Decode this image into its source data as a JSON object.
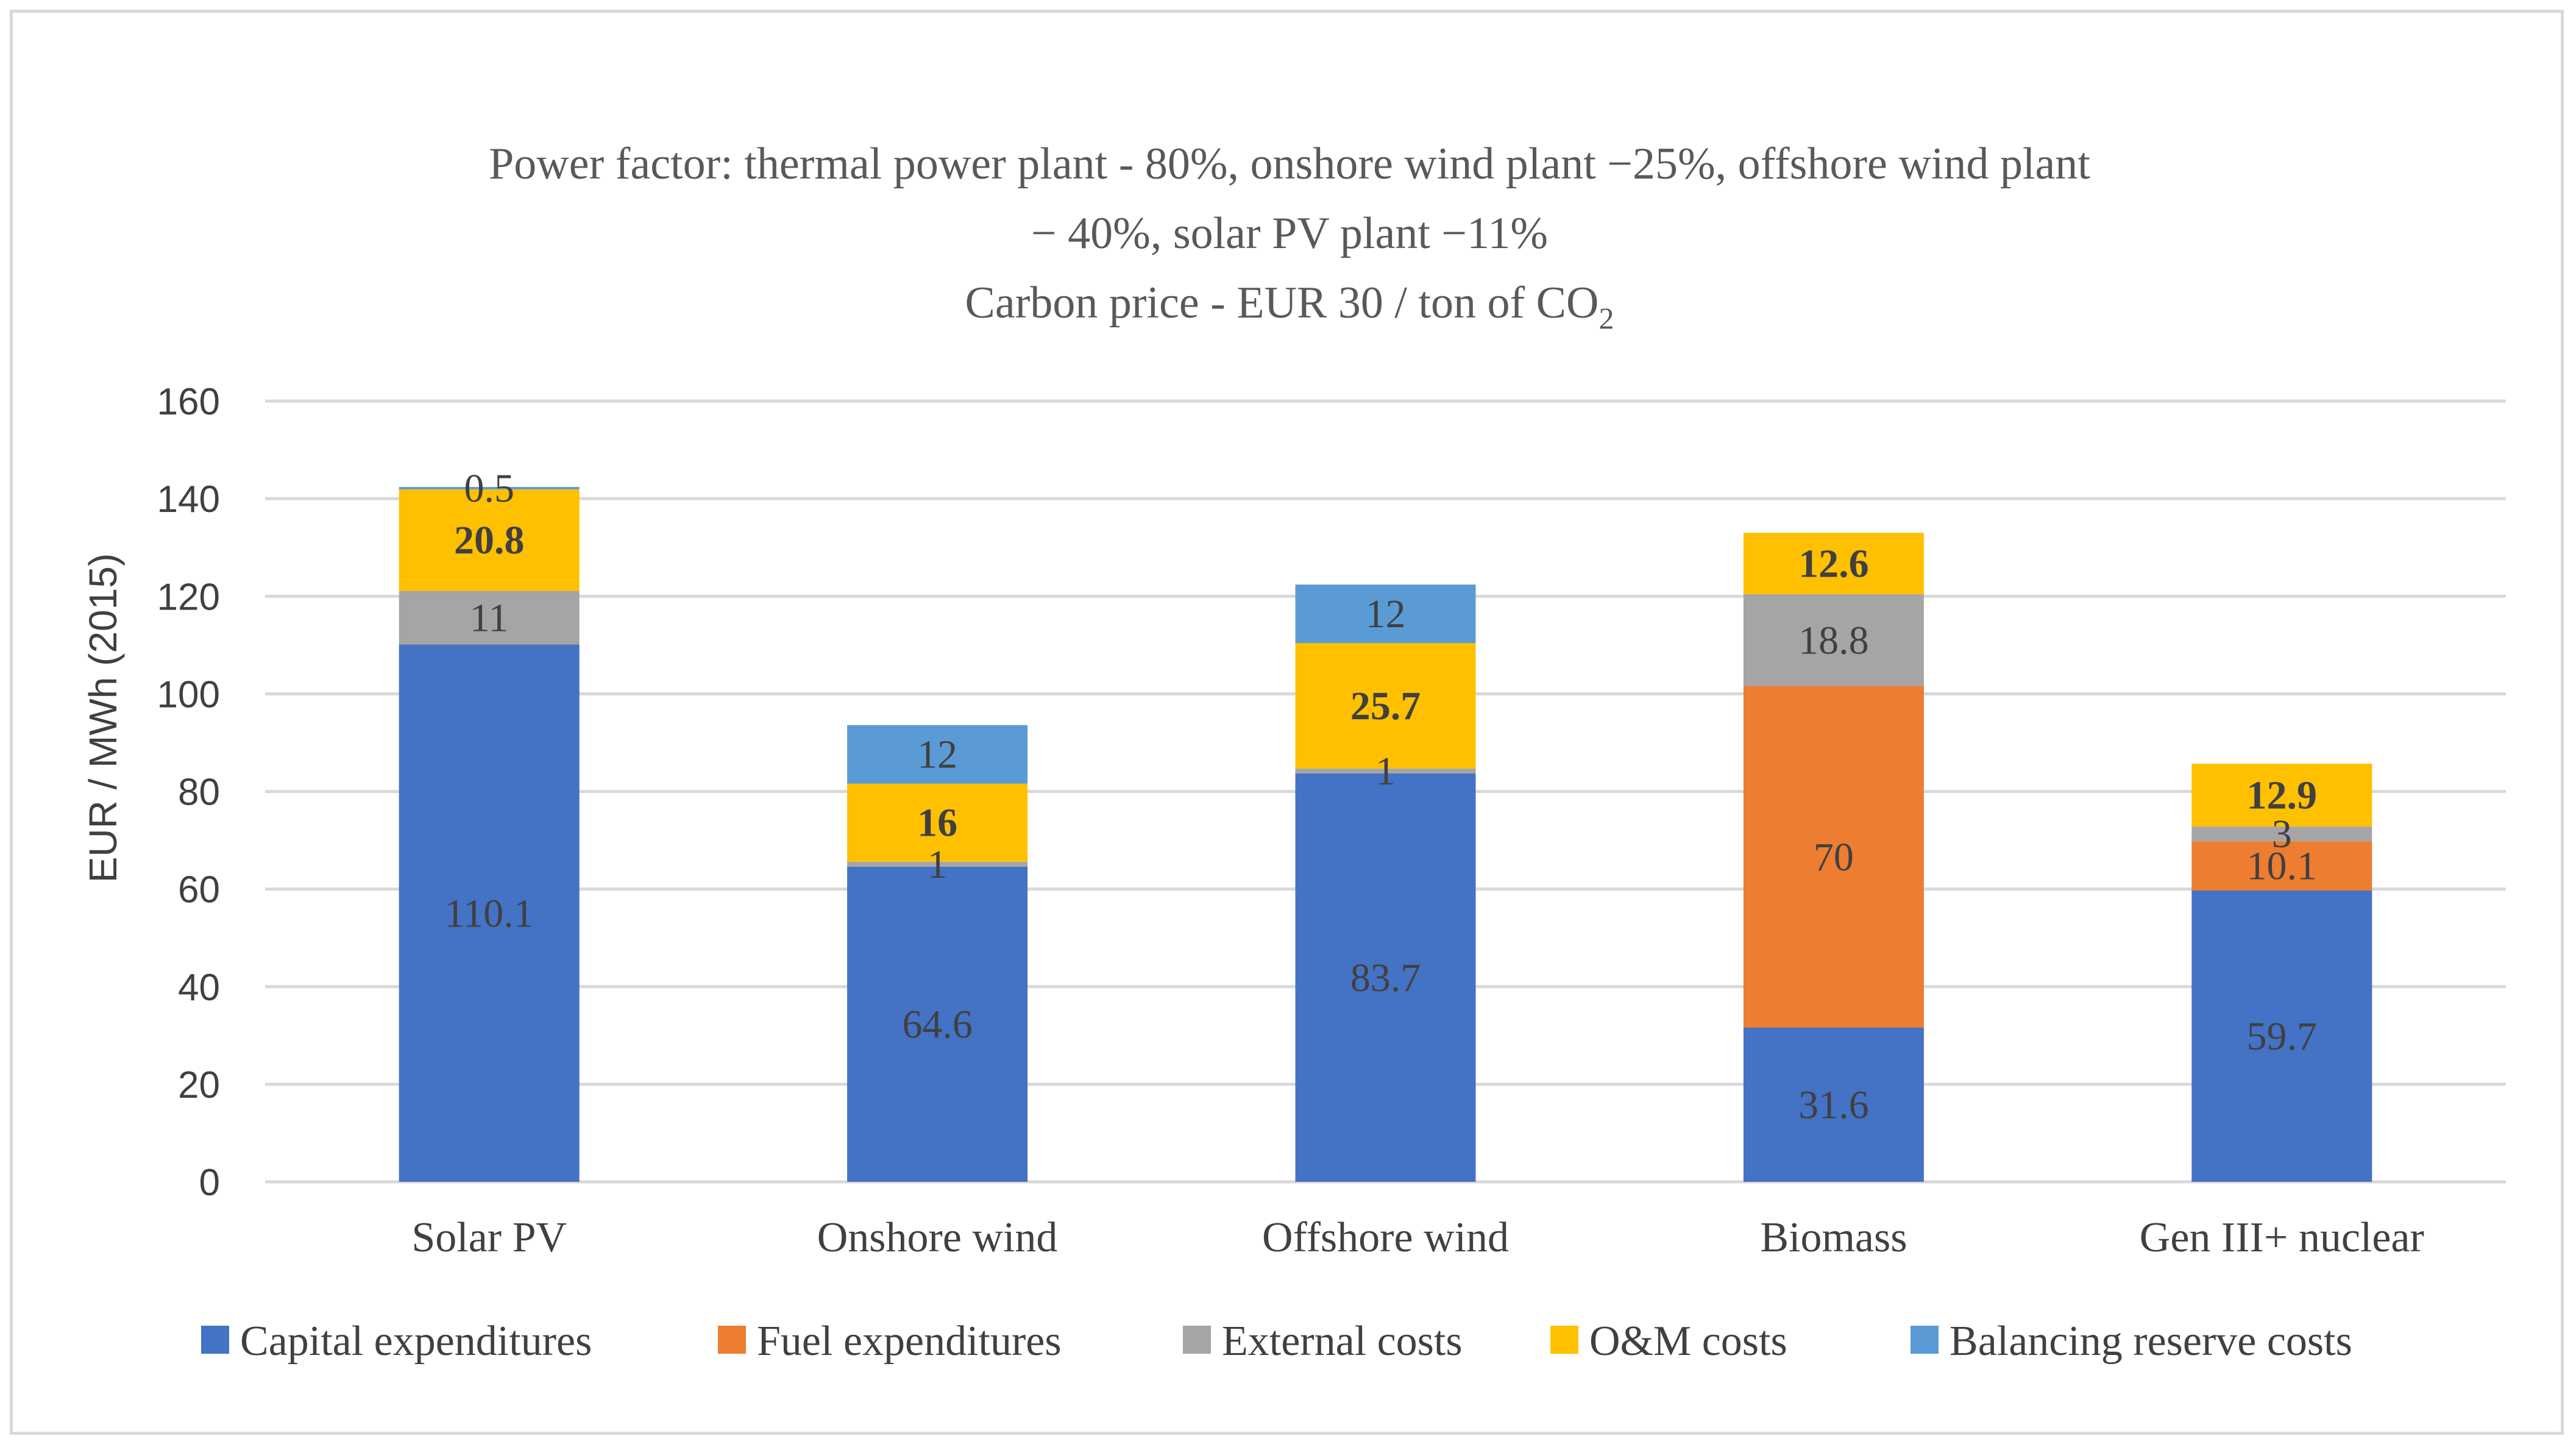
{
  "chart_data": {
    "type": "bar",
    "stacked": true,
    "title_lines": [
      "Power factor: thermal power plant - 80%, onshore wind plant −25%, offshore wind plant",
      "− 40%, solar PV plant −11%"
    ],
    "title_line3": {
      "text": "Carbon price - EUR 30 / ton of CO",
      "subscript": "2"
    },
    "ylabel": "EUR / MWh (2015)",
    "xlabel": "",
    "ylim": [
      0,
      160
    ],
    "yticks": [
      0,
      20,
      40,
      60,
      80,
      100,
      120,
      140,
      160
    ],
    "grid": true,
    "legend_position": "bottom",
    "categories": [
      "Solar PV",
      "Onshore wind",
      "Offshore wind",
      "Biomass",
      "Gen III+ nuclear"
    ],
    "series": [
      {
        "name": "Capital expenditures",
        "color": "#4472C4",
        "values": [
          110.1,
          64.6,
          83.7,
          31.6,
          59.7
        ],
        "labels": [
          "110.1",
          "64.6",
          "83.7",
          "31.6",
          "59.7"
        ],
        "bold": false
      },
      {
        "name": "Fuel expenditures",
        "color": "#ED7D31",
        "values": [
          0,
          0,
          0,
          70,
          10.1
        ],
        "labels": [
          "",
          "",
          "",
          "70",
          "10.1"
        ],
        "bold": false
      },
      {
        "name": "External costs",
        "color": "#A5A5A5",
        "values": [
          11,
          1,
          1,
          18.8,
          3
        ],
        "labels": [
          "11",
          "1",
          "1",
          "18.8",
          "3"
        ],
        "bold": false
      },
      {
        "name": "O&M costs",
        "color": "#FFC000",
        "values": [
          20.8,
          16,
          25.7,
          12.6,
          12.9
        ],
        "labels": [
          "20.8",
          "16",
          "25.7",
          "12.6",
          "12.9"
        ],
        "bold": true
      },
      {
        "name": "Balancing reserve costs",
        "color": "#5B9BD5",
        "values": [
          0.5,
          12,
          12,
          0,
          0
        ],
        "labels": [
          "0.5",
          "12",
          "12",
          "",
          ""
        ],
        "bold": false
      }
    ],
    "colors": {
      "gridline": "#d9d9d9",
      "label_text": "#404040",
      "axis_text": "#404040",
      "title_text": "#595959"
    }
  }
}
